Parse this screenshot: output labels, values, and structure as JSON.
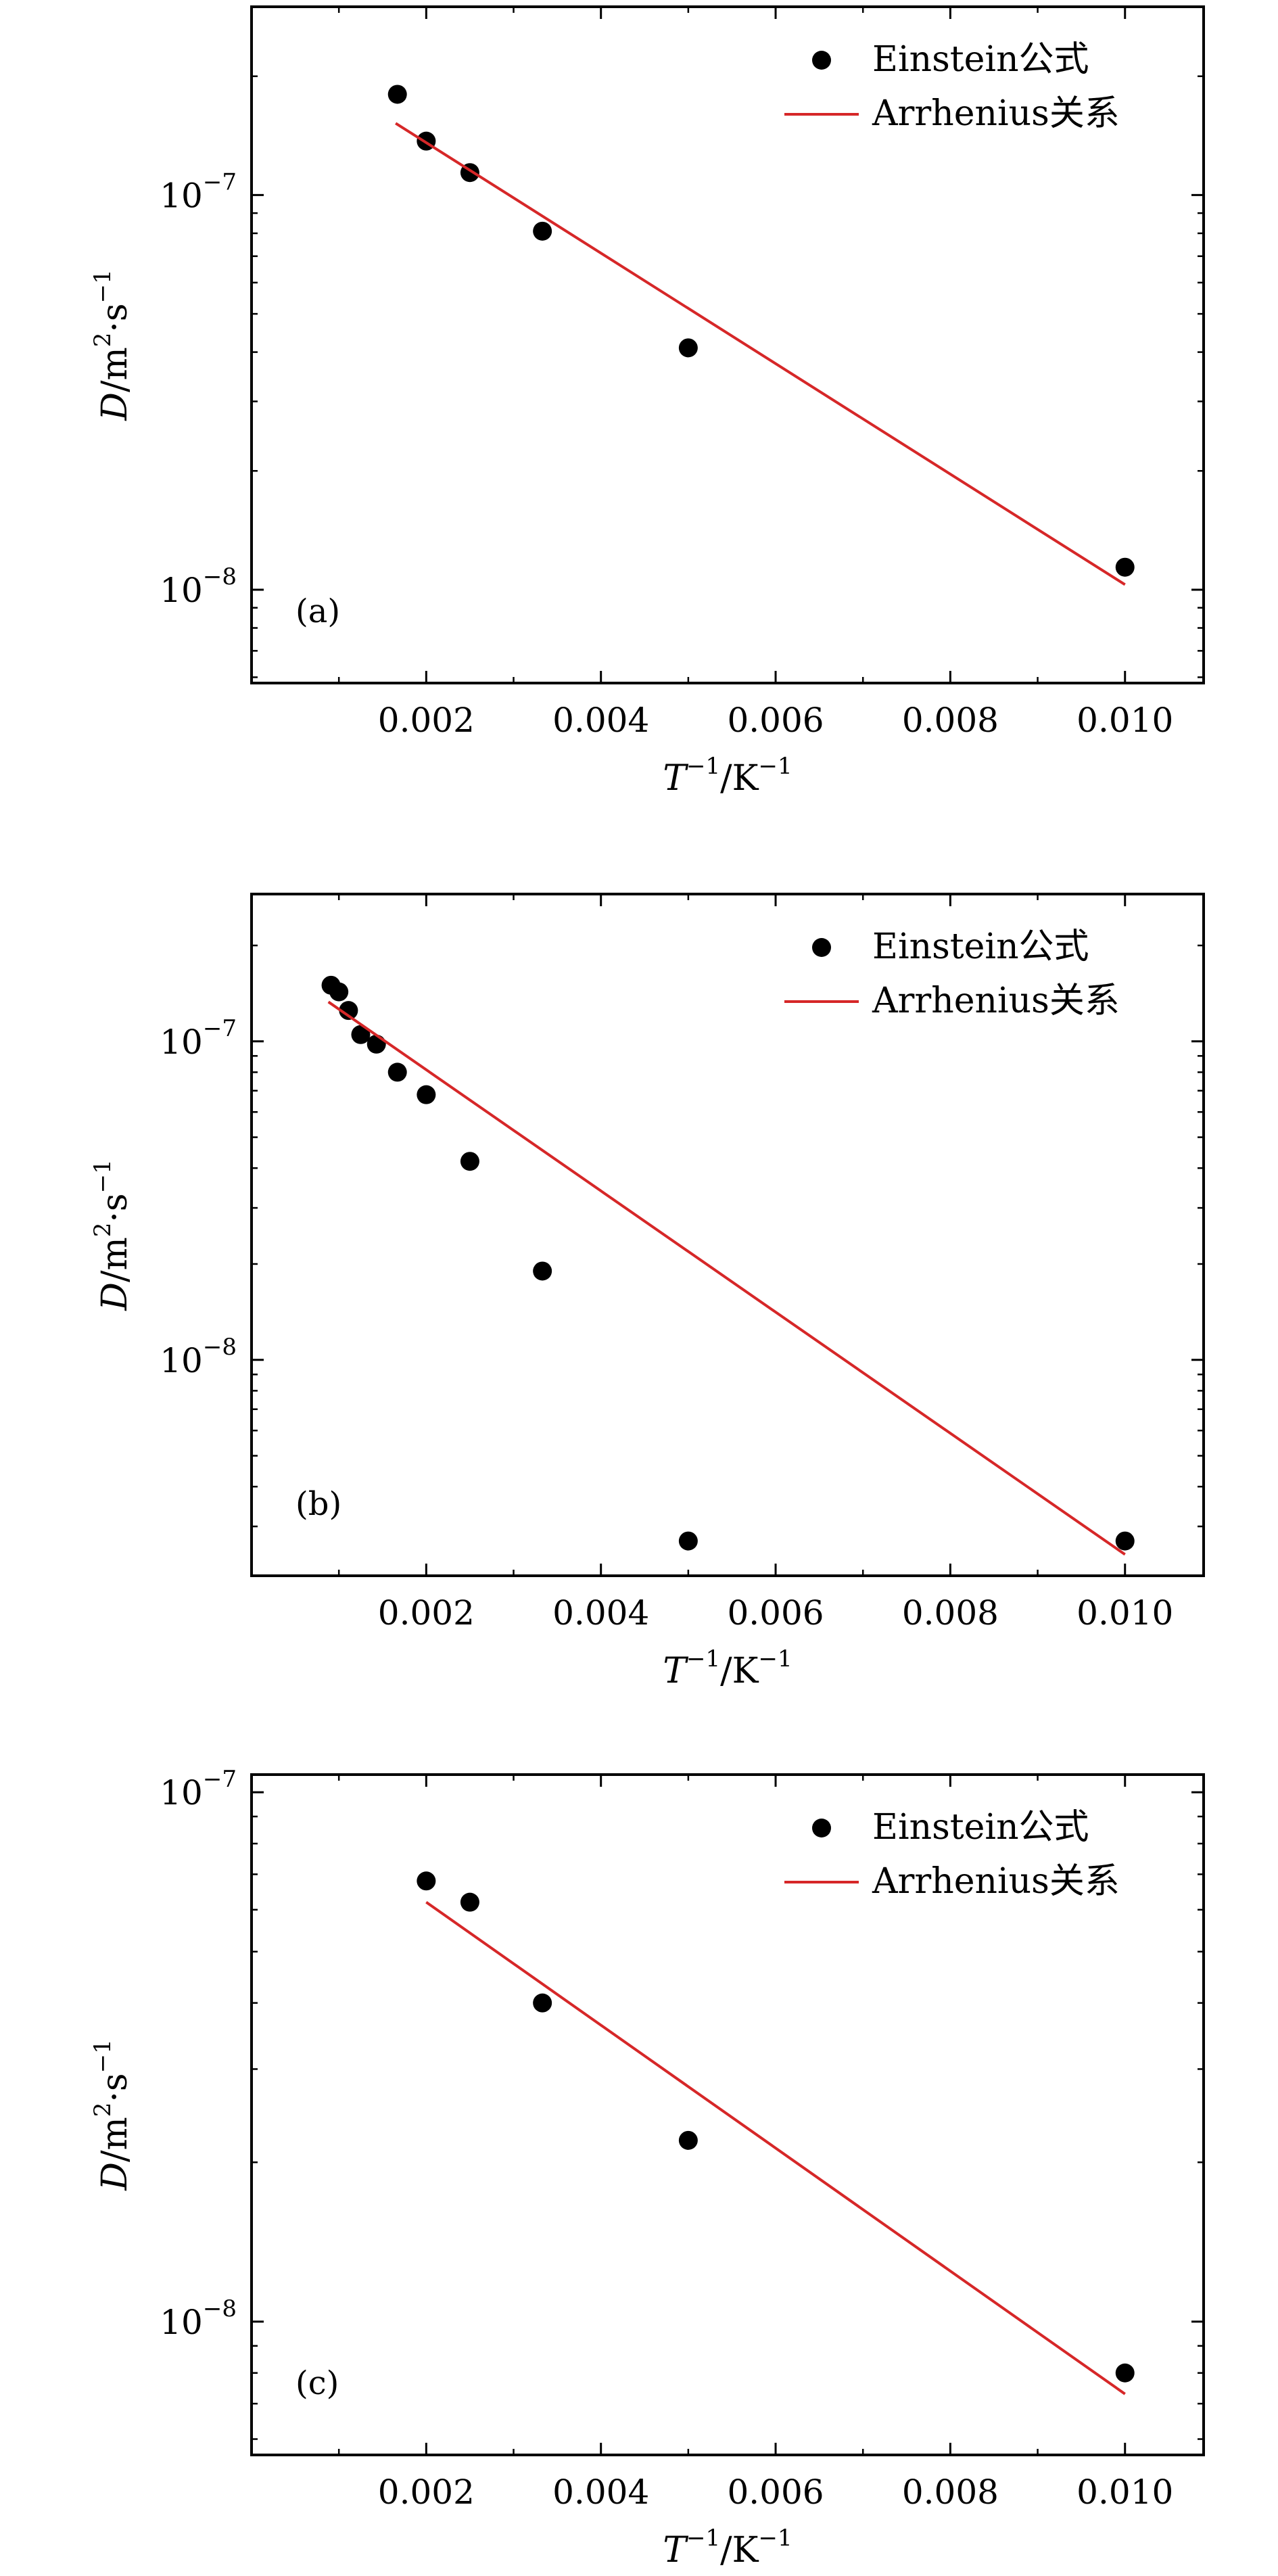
{
  "chart_data": [
    {
      "type": "scatter",
      "panel_label": "(a)",
      "xlabel": {
        "base": "T",
        "exp": "−1",
        "unit": "/K",
        "unit_exp": "−1"
      },
      "ylabel": {
        "base": "D",
        "unit_m": "/m",
        "exp_m": "2",
        "unit_s": "·s",
        "exp_s": "−1"
      },
      "y_scale": "log",
      "xlim": [
        0,
        0.0109
      ],
      "ylim": [
        5.8e-09,
        3e-07
      ],
      "x_ticks": [
        0.002,
        0.004,
        0.006,
        0.008,
        0.01
      ],
      "x_tick_labels": [
        "0.002",
        "0.004",
        "0.006",
        "0.008",
        "0.010"
      ],
      "y_major_ticks": [
        {
          "value": 1e-08,
          "base": "10",
          "exp": "−8"
        },
        {
          "value": 1e-07,
          "base": "10",
          "exp": "−7"
        }
      ],
      "legend_position": "top-right",
      "series": [
        {
          "name": "Einstein公式",
          "kind": "scatter",
          "color": "#000000",
          "x": [
            0.00167,
            0.002,
            0.0025,
            0.00333,
            0.005,
            0.01
          ],
          "y": [
            1.8e-07,
            1.37e-07,
            1.14e-07,
            8.1e-08,
            4.1e-08,
            1.14e-08
          ]
        },
        {
          "name": "Arrhenius关系",
          "kind": "line",
          "color": "#d62728",
          "x": [
            0.00165,
            0.01
          ],
          "y": [
            1.52e-07,
            1.03e-08
          ]
        }
      ]
    },
    {
      "type": "scatter",
      "panel_label": "(b)",
      "xlabel": {
        "base": "T",
        "exp": "−1",
        "unit": "/K",
        "unit_exp": "−1"
      },
      "ylabel": {
        "base": "D",
        "unit_m": "/m",
        "exp_m": "2",
        "unit_s": "·s",
        "exp_s": "−1"
      },
      "y_scale": "log",
      "xlim": [
        0,
        0.0109
      ],
      "ylim": [
        2.1e-09,
        2.9e-07
      ],
      "x_ticks": [
        0.002,
        0.004,
        0.006,
        0.008,
        0.01
      ],
      "x_tick_labels": [
        "0.002",
        "0.004",
        "0.006",
        "0.008",
        "0.010"
      ],
      "y_major_ticks": [
        {
          "value": 1e-08,
          "base": "10",
          "exp": "−8"
        },
        {
          "value": 1e-07,
          "base": "10",
          "exp": "−7"
        }
      ],
      "legend_position": "top-right",
      "series": [
        {
          "name": "Einstein公式",
          "kind": "scatter",
          "color": "#000000",
          "x": [
            0.00091,
            0.001,
            0.00111,
            0.00125,
            0.00143,
            0.00167,
            0.002,
            0.0025,
            0.00333,
            0.005,
            0.01
          ],
          "y": [
            1.5e-07,
            1.43e-07,
            1.25e-07,
            1.05e-07,
            9.8e-08,
            8e-08,
            6.8e-08,
            4.2e-08,
            1.9e-08,
            2.7e-09,
            2.7e-09
          ]
        },
        {
          "name": "Arrhenius关系",
          "kind": "line",
          "color": "#d62728",
          "x": [
            0.00088,
            0.01
          ],
          "y": [
            1.33e-07,
            2.45e-09
          ]
        }
      ]
    },
    {
      "type": "scatter",
      "panel_label": "(c)",
      "xlabel": {
        "base": "T",
        "exp": "−1",
        "unit": "/K",
        "unit_exp": "−1"
      },
      "ylabel": {
        "base": "D",
        "unit_m": "/m",
        "exp_m": "2",
        "unit_s": "·s",
        "exp_s": "−1"
      },
      "y_scale": "log",
      "xlim": [
        0,
        0.0109
      ],
      "ylim": [
        5.6e-09,
        1.08e-07
      ],
      "x_ticks": [
        0.002,
        0.004,
        0.006,
        0.008,
        0.01
      ],
      "x_tick_labels": [
        "0.002",
        "0.004",
        "0.006",
        "0.008",
        "0.010"
      ],
      "y_major_ticks": [
        {
          "value": 1e-08,
          "base": "10",
          "exp": "−8"
        },
        {
          "value": 1e-07,
          "base": "10",
          "exp": "−7"
        }
      ],
      "legend_position": "top-right",
      "series": [
        {
          "name": "Einstein公式",
          "kind": "scatter",
          "color": "#000000",
          "x": [
            0.002,
            0.0025,
            0.00333,
            0.005,
            0.01
          ],
          "y": [
            6.8e-08,
            6.2e-08,
            4e-08,
            2.2e-08,
            8e-09
          ]
        },
        {
          "name": "Arrhenius关系",
          "kind": "line",
          "color": "#d62728",
          "x": [
            0.002,
            0.01
          ],
          "y": [
            6.2e-08,
            7.3e-09
          ]
        }
      ]
    }
  ]
}
